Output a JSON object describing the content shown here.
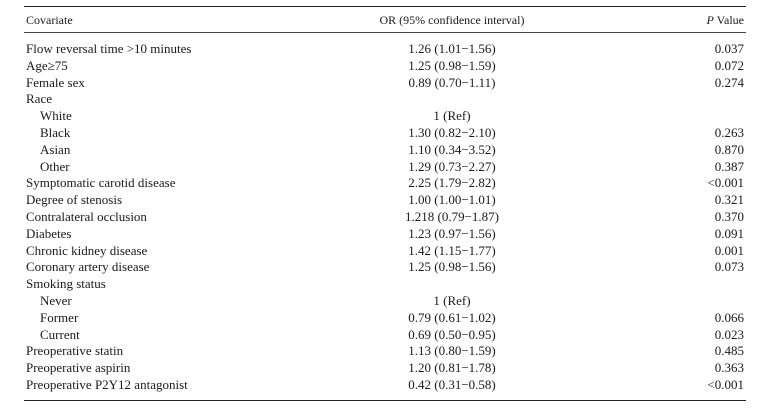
{
  "table": {
    "headers": {
      "covariate": "Covariate",
      "or": "OR (95% confidence interval)",
      "p_italic": "P",
      "p_rest": " Value"
    },
    "rows": [
      {
        "covariate": "Flow reversal time >10 minutes",
        "or": "1.26 (1.01−1.56)",
        "p": "0.037",
        "indent": false
      },
      {
        "covariate": "Age≥75",
        "or": "1.25 (0.98−1.59)",
        "p": "0.072",
        "indent": false
      },
      {
        "covariate": "Female sex",
        "or": "0.89 (0.70−1.11)",
        "p": "0.274",
        "indent": false
      },
      {
        "covariate": "Race",
        "or": "",
        "p": "",
        "indent": false
      },
      {
        "covariate": "White",
        "or": "1 (Ref)",
        "p": "",
        "indent": true
      },
      {
        "covariate": "Black",
        "or": "1.30 (0.82−2.10)",
        "p": "0.263",
        "indent": true
      },
      {
        "covariate": "Asian",
        "or": "1.10 (0.34−3.52)",
        "p": "0.870",
        "indent": true
      },
      {
        "covariate": "Other",
        "or": "1.29 (0.73−2.27)",
        "p": "0.387",
        "indent": true
      },
      {
        "covariate": "Symptomatic carotid disease",
        "or": "2.25 (1.79−2.82)",
        "p": "<0.001",
        "indent": false
      },
      {
        "covariate": "Degree of stenosis",
        "or": "1.00 (1.00−1.01)",
        "p": "0.321",
        "indent": false
      },
      {
        "covariate": "Contralateral occlusion",
        "or": "1.218 (0.79−1.87)",
        "p": "0.370",
        "indent": false
      },
      {
        "covariate": "Diabetes",
        "or": "1.23 (0.97−1.56)",
        "p": "0.091",
        "indent": false
      },
      {
        "covariate": "Chronic kidney disease",
        "or": "1.42 (1.15−1.77)",
        "p": "0.001",
        "indent": false
      },
      {
        "covariate": "Coronary artery disease",
        "or": "1.25 (0.98−1.56)",
        "p": "0.073",
        "indent": false
      },
      {
        "covariate": "Smoking status",
        "or": "",
        "p": "",
        "indent": false
      },
      {
        "covariate": "Never",
        "or": "1 (Ref)",
        "p": "",
        "indent": true
      },
      {
        "covariate": "Former",
        "or": "0.79 (0.61−1.02)",
        "p": "0.066",
        "indent": true
      },
      {
        "covariate": "Current",
        "or": "0.69 (0.50−0.95)",
        "p": "0.023",
        "indent": true
      },
      {
        "covariate": "Preoperative statin",
        "or": "1.13 (0.80−1.59)",
        "p": "0.485",
        "indent": false
      },
      {
        "covariate": "Preoperative aspirin",
        "or": "1.20 (0.81−1.78)",
        "p": "0.363",
        "indent": false
      },
      {
        "covariate": "Preoperative P2Y12 antagonist",
        "or": "0.42 (0.31−0.58)",
        "p": "<0.001",
        "indent": false
      }
    ]
  }
}
